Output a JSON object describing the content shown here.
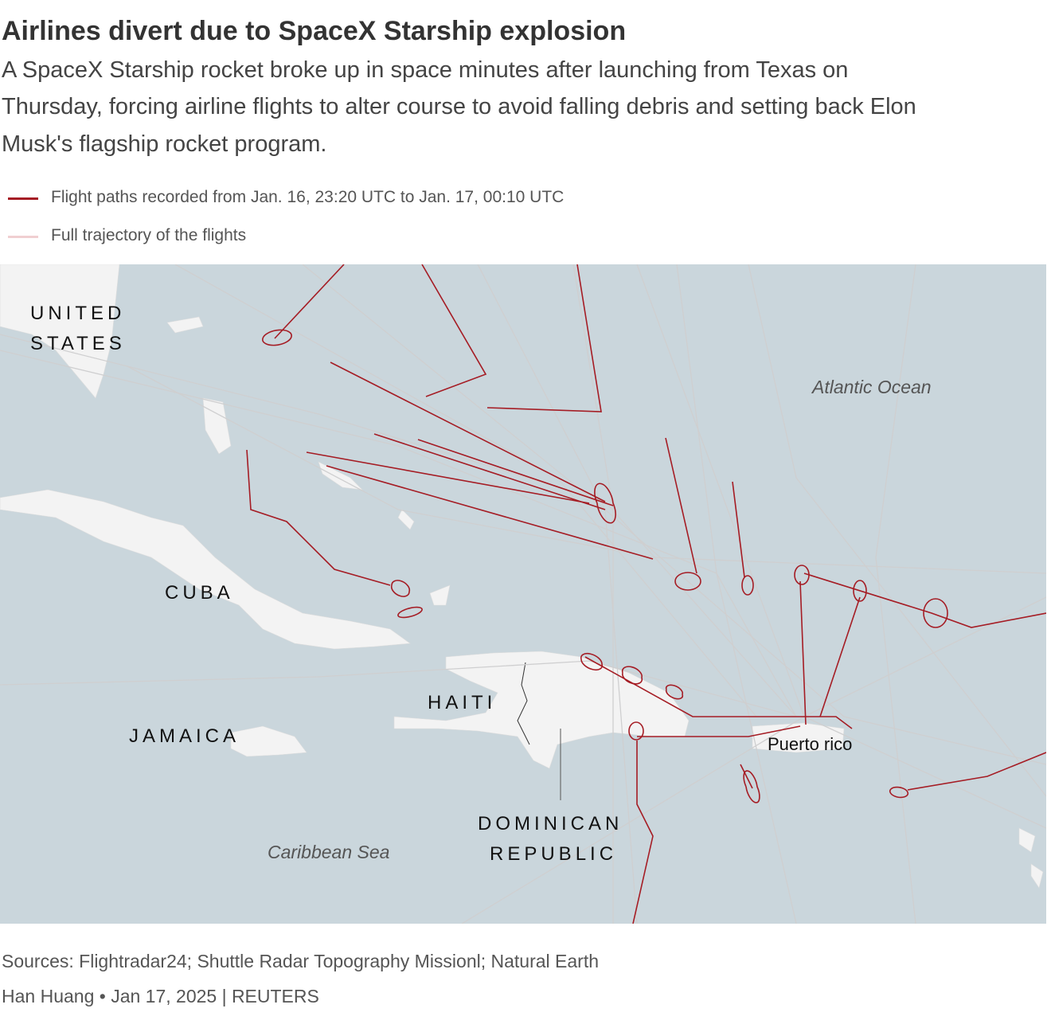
{
  "header": {
    "title": "Airlines divert due to SpaceX Starship explosion",
    "subtitle_lines": [
      "A SpaceX Starship rocket broke up in space minutes after launching from Texas on",
      "Thursday, forcing airline flights to alter course to avoid falling debris and setting back Elon",
      "Musk's flagship rocket program."
    ]
  },
  "legend": {
    "items": [
      {
        "label": "Flight paths recorded from Jan. 16, 23:20 UTC to Jan. 17, 00:10 UTC"
      },
      {
        "label": "Full trajectory of the flights"
      }
    ]
  },
  "map": {
    "labels": [
      {
        "lines": [
          "UNITED",
          "STATES"
        ]
      },
      {
        "lines": [
          "CUBA"
        ]
      },
      {
        "lines": [
          "HAITI"
        ]
      },
      {
        "lines": [
          "JAMAICA"
        ]
      },
      {
        "lines": [
          "DOMINICAN",
          "REPUBLIC"
        ]
      },
      {
        "lines": [
          "Puerto rico"
        ]
      },
      {
        "lines": [
          "Atlantic Ocean"
        ]
      },
      {
        "lines": [
          "Caribbean Sea"
        ]
      }
    ]
  },
  "footer": {
    "sources": "Sources: Flightradar24; Shuttle Radar Topography Missionl; Natural Earth",
    "byline": "Han Huang • Jan 17, 2025 | REUTERS"
  }
}
